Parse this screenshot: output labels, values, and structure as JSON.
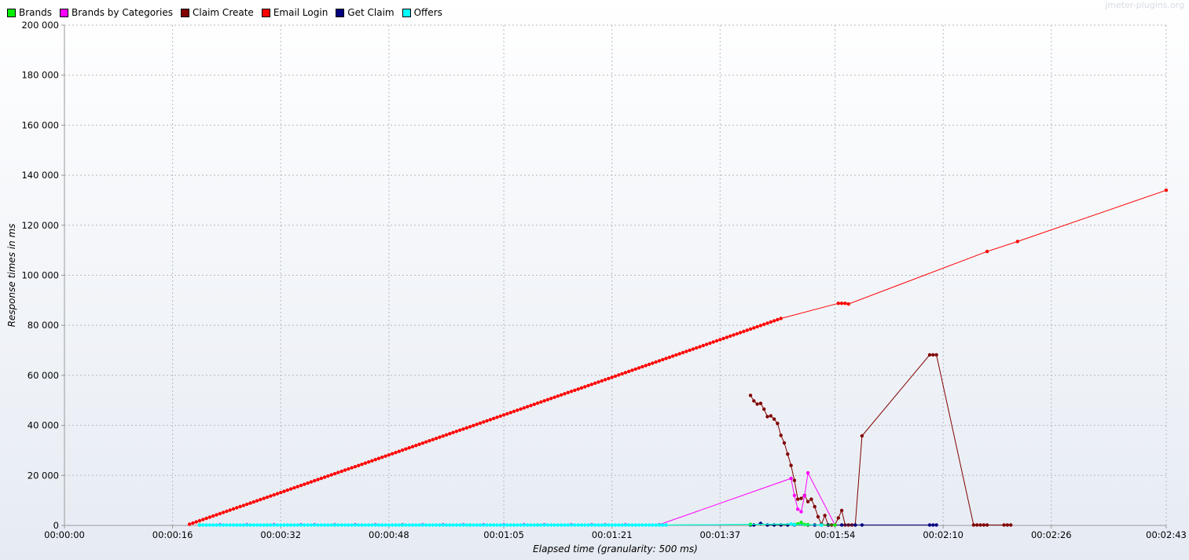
{
  "watermark": "jmeter-plugins.org",
  "chart_data": {
    "type": "line",
    "title": "",
    "xlabel": "Elapsed time (granularity: 500 ms)",
    "ylabel": "Response times in ms",
    "x_unit": "seconds",
    "xlim": [
      0,
      163
    ],
    "ylim": [
      0,
      200000
    ],
    "grid": true,
    "legend_position": "top-left",
    "x_ticks": [
      {
        "value": 0,
        "label": "00:00:00"
      },
      {
        "value": 16,
        "label": "00:00:16"
      },
      {
        "value": 32,
        "label": "00:00:32"
      },
      {
        "value": 48,
        "label": "00:00:48"
      },
      {
        "value": 65,
        "label": "00:01:05"
      },
      {
        "value": 81,
        "label": "00:01:21"
      },
      {
        "value": 97,
        "label": "00:01:37"
      },
      {
        "value": 114,
        "label": "00:01:54"
      },
      {
        "value": 130,
        "label": "00:02:10"
      },
      {
        "value": 146,
        "label": "00:02:26"
      },
      {
        "value": 163,
        "label": "00:02:43"
      }
    ],
    "y_ticks": [
      {
        "value": 0,
        "label": "0"
      },
      {
        "value": 20000,
        "label": "20 000"
      },
      {
        "value": 40000,
        "label": "40 000"
      },
      {
        "value": 60000,
        "label": "60 000"
      },
      {
        "value": 80000,
        "label": "80 000"
      },
      {
        "value": 100000,
        "label": "100 000"
      },
      {
        "value": 120000,
        "label": "120 000"
      },
      {
        "value": 140000,
        "label": "140 000"
      },
      {
        "value": 160000,
        "label": "160 000"
      },
      {
        "value": 180000,
        "label": "180 000"
      },
      {
        "value": 200000,
        "label": "200 000"
      }
    ],
    "series": [
      {
        "name": "Brands",
        "color": "#00ee00",
        "points": [
          [
            20,
            200
          ],
          [
            30,
            200
          ],
          [
            40,
            200
          ],
          [
            50,
            200
          ],
          [
            60,
            200
          ],
          [
            70,
            200
          ],
          [
            80,
            200
          ],
          [
            88,
            200
          ],
          [
            101.5,
            400
          ],
          [
            108,
            400
          ],
          [
            108.5,
            600
          ],
          [
            109,
            1200
          ],
          [
            109.5,
            400
          ],
          [
            110,
            300
          ],
          [
            112,
            200
          ],
          [
            114,
            200
          ]
        ]
      },
      {
        "name": "Brands by Categories",
        "color": "#ff00ff",
        "points": [
          [
            20,
            200
          ],
          [
            23,
            300
          ],
          [
            27,
            300
          ],
          [
            31,
            300
          ],
          [
            35,
            300
          ],
          [
            37,
            300
          ],
          [
            40,
            300
          ],
          [
            43,
            300
          ],
          [
            46,
            300
          ],
          [
            50,
            300
          ],
          [
            53,
            300
          ],
          [
            56,
            300
          ],
          [
            59,
            300
          ],
          [
            62,
            300
          ],
          [
            65,
            300
          ],
          [
            68,
            300
          ],
          [
            71,
            300
          ],
          [
            75,
            300
          ],
          [
            78,
            300
          ],
          [
            80,
            300
          ],
          [
            83,
            300
          ],
          [
            88,
            300
          ],
          [
            107.5,
            18800
          ],
          [
            108,
            12000
          ],
          [
            108.5,
            6500
          ],
          [
            109,
            5500
          ],
          [
            109.5,
            11800
          ],
          [
            110,
            21000
          ],
          [
            114,
            200
          ]
        ]
      },
      {
        "name": "Claim Create",
        "color": "#800000",
        "points": [
          [
            101.5,
            52000
          ],
          [
            102,
            49800
          ],
          [
            102.5,
            48500
          ],
          [
            103,
            48800
          ],
          [
            103.5,
            46500
          ],
          [
            104,
            43500
          ],
          [
            104.5,
            43800
          ],
          [
            105,
            42500
          ],
          [
            105.5,
            40800
          ],
          [
            106,
            36000
          ],
          [
            106.5,
            33000
          ],
          [
            107,
            28500
          ],
          [
            107.5,
            24000
          ],
          [
            108,
            18000
          ],
          [
            108.5,
            10500
          ],
          [
            109,
            10800
          ],
          [
            109.5,
            12000
          ],
          [
            110,
            9500
          ],
          [
            110.5,
            10500
          ],
          [
            111,
            7500
          ],
          [
            111.5,
            3500
          ],
          [
            112,
            500
          ],
          [
            112.5,
            4000
          ],
          [
            113,
            200
          ],
          [
            113.5,
            200
          ],
          [
            114,
            200
          ],
          [
            114.5,
            3000
          ],
          [
            115,
            6000
          ],
          [
            115.5,
            200
          ],
          [
            116,
            200
          ],
          [
            116.5,
            200
          ],
          [
            117,
            200
          ],
          [
            118,
            35800
          ],
          [
            128,
            68200
          ],
          [
            128.5,
            68200
          ],
          [
            129,
            68200
          ],
          [
            134.5,
            200
          ],
          [
            135,
            200
          ],
          [
            135.5,
            200
          ],
          [
            136,
            200
          ],
          [
            136.5,
            200
          ],
          [
            139,
            200
          ],
          [
            139.5,
            200
          ],
          [
            140,
            200
          ]
        ]
      },
      {
        "name": "Email Login",
        "color": "#ff0000",
        "points": []
      },
      {
        "name": "Get Claim",
        "color": "#000080",
        "points": [
          [
            101.5,
            200
          ],
          [
            102,
            200
          ],
          [
            103,
            800
          ],
          [
            104,
            200
          ],
          [
            105,
            200
          ],
          [
            106,
            200
          ],
          [
            107,
            200
          ],
          [
            108,
            200
          ],
          [
            110,
            200
          ],
          [
            111,
            200
          ],
          [
            112,
            200
          ],
          [
            113,
            200
          ],
          [
            115,
            200
          ],
          [
            117,
            200
          ],
          [
            118,
            200
          ],
          [
            128,
            200
          ],
          [
            128.5,
            200
          ],
          [
            129,
            200
          ]
        ]
      },
      {
        "name": "Offers",
        "color": "#00ffff",
        "points": []
      }
    ]
  }
}
